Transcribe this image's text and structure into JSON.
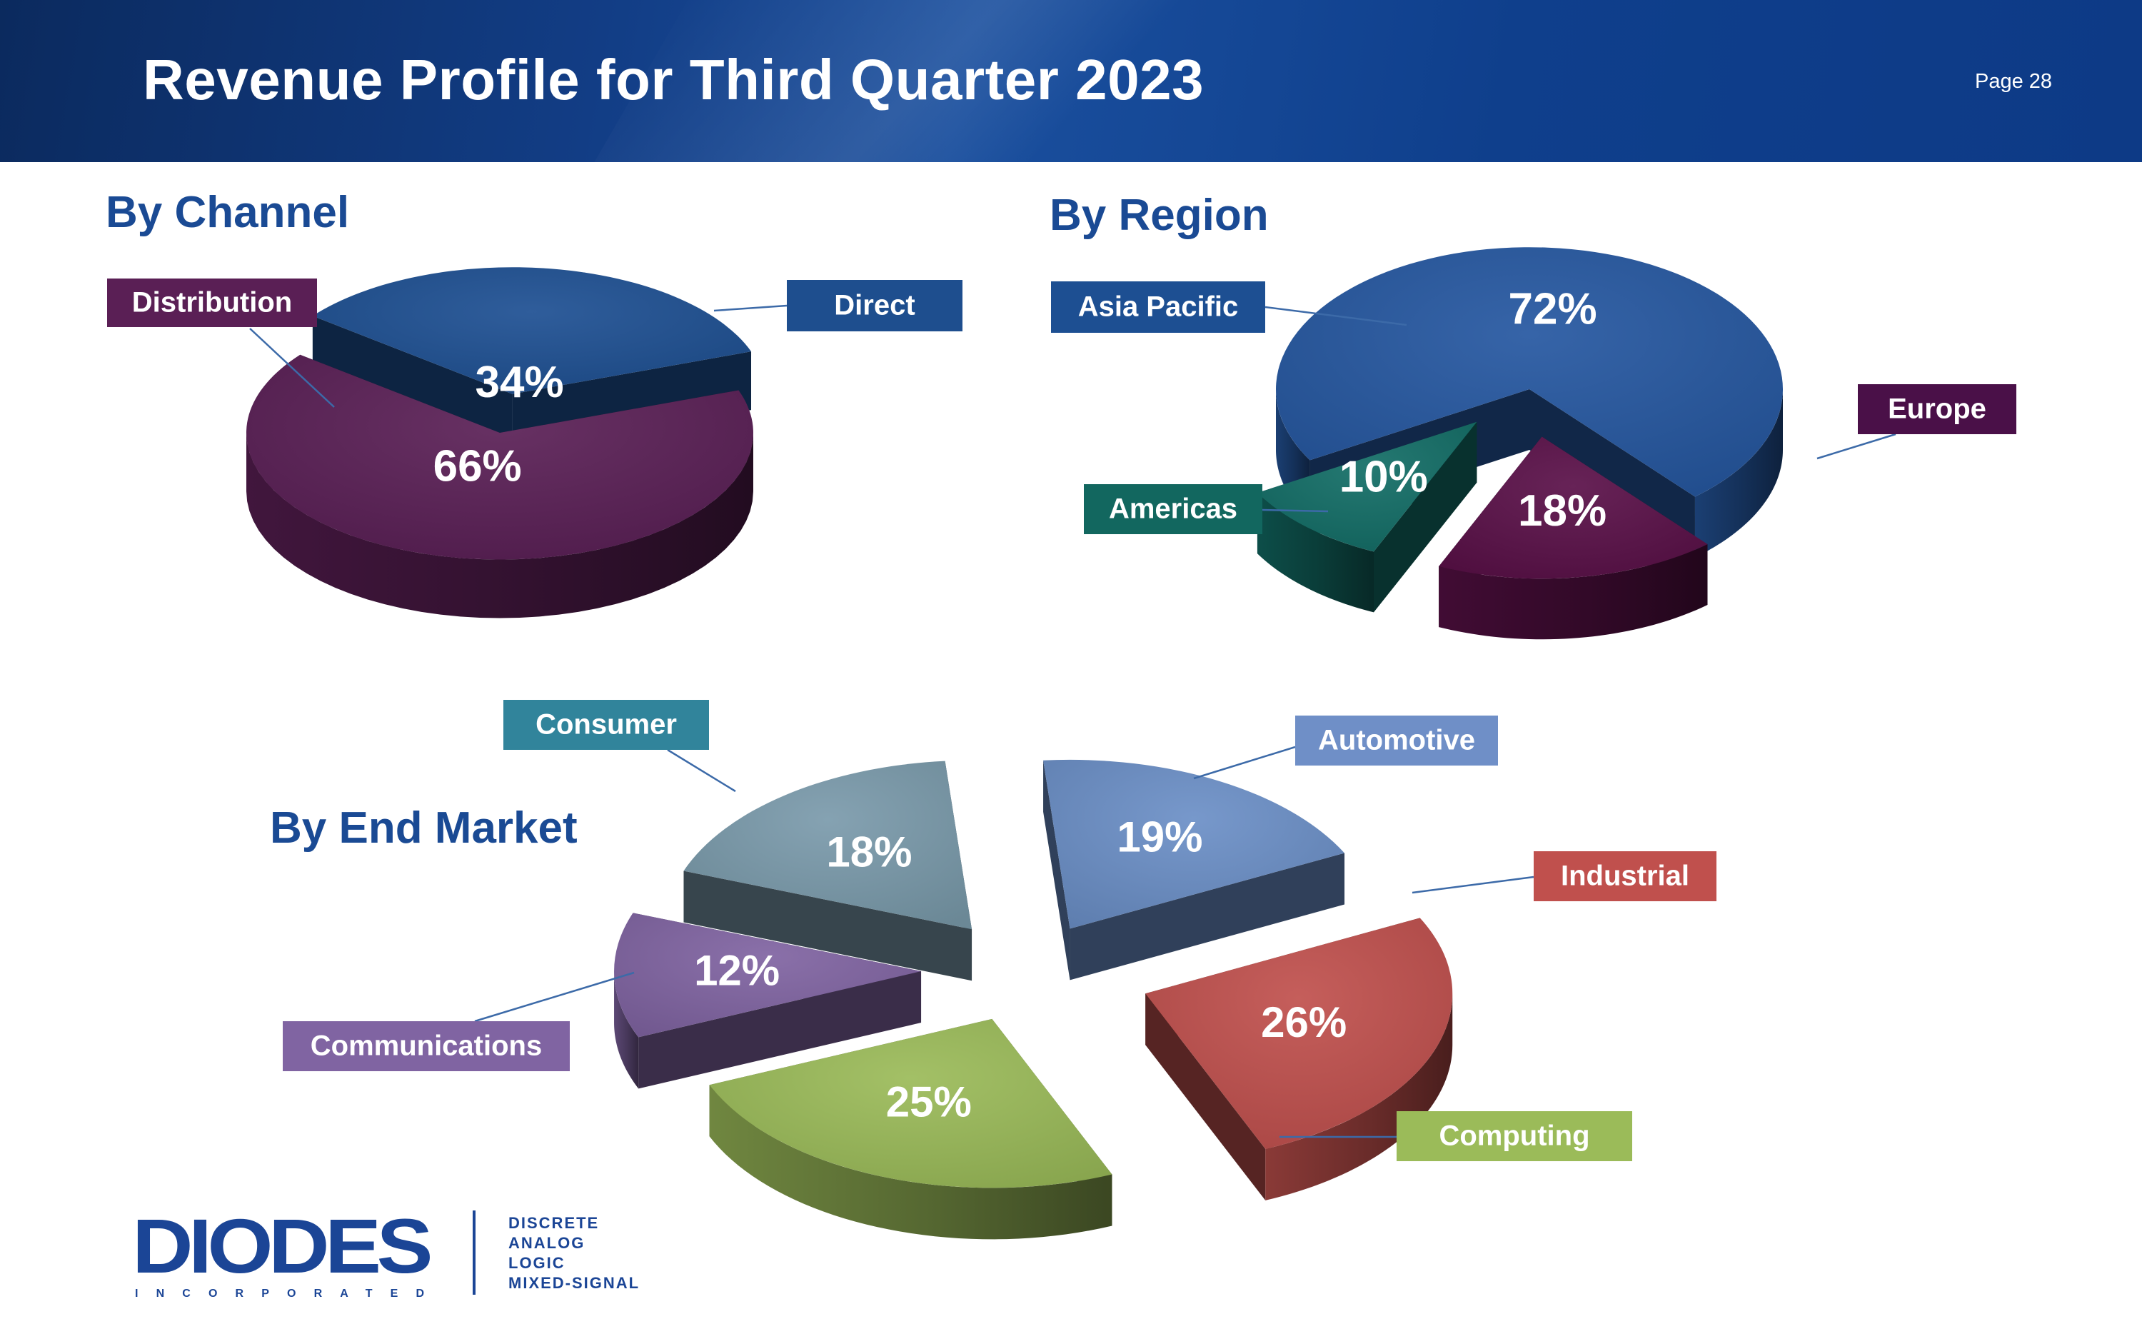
{
  "header": {
    "title": "Revenue Profile for Third Quarter 2023",
    "page": "Page 28"
  },
  "chart_data": [
    {
      "type": "pie",
      "title": "By Channel",
      "slices": [
        {
          "name": "Direct",
          "value": 34,
          "label": "34%",
          "color": "#1d4f92"
        },
        {
          "name": "Distribution",
          "value": 66,
          "label": "66%",
          "color": "#5a1f55"
        }
      ]
    },
    {
      "type": "pie",
      "title": "By Region",
      "slices": [
        {
          "name": "Asia Pacific",
          "value": 72,
          "label": "72%",
          "color": "#2557a0"
        },
        {
          "name": "Europe",
          "value": 18,
          "label": "18%",
          "color": "#5a1048"
        },
        {
          "name": "Americas",
          "value": 10,
          "label": "10%",
          "color": "#126d66"
        }
      ]
    },
    {
      "type": "pie",
      "title": "By End Market",
      "slices": [
        {
          "name": "Automotive",
          "value": 19,
          "label": "19%",
          "color": "#6b8fc7"
        },
        {
          "name": "Industrial",
          "value": 26,
          "label": "26%",
          "color": "#c0504d"
        },
        {
          "name": "Computing",
          "value": 25,
          "label": "25%",
          "color": "#9bbb59"
        },
        {
          "name": "Communications",
          "value": 12,
          "label": "12%",
          "color": "#8064a2"
        },
        {
          "name": "Consumer",
          "value": 18,
          "label": "18%",
          "color": "#7a9aab"
        }
      ]
    }
  ],
  "legend_colors": {
    "Direct": "#1e4e8e",
    "Distribution": "#5a1f55",
    "Asia Pacific": "#1d4f92",
    "Europe": "#4a1048",
    "Americas": "#12675f",
    "Consumer": "#31849b",
    "Automotive": "#6f8fc7",
    "Industrial": "#c0504d",
    "Communications": "#8064a2",
    "Computing": "#9bbb59"
  },
  "logo": {
    "wordmark": "DIODES",
    "sub": "INCORPORATED",
    "tagline": [
      "DISCRETE",
      "ANALOG",
      "LOGIC",
      "MIXED-SIGNAL"
    ]
  }
}
